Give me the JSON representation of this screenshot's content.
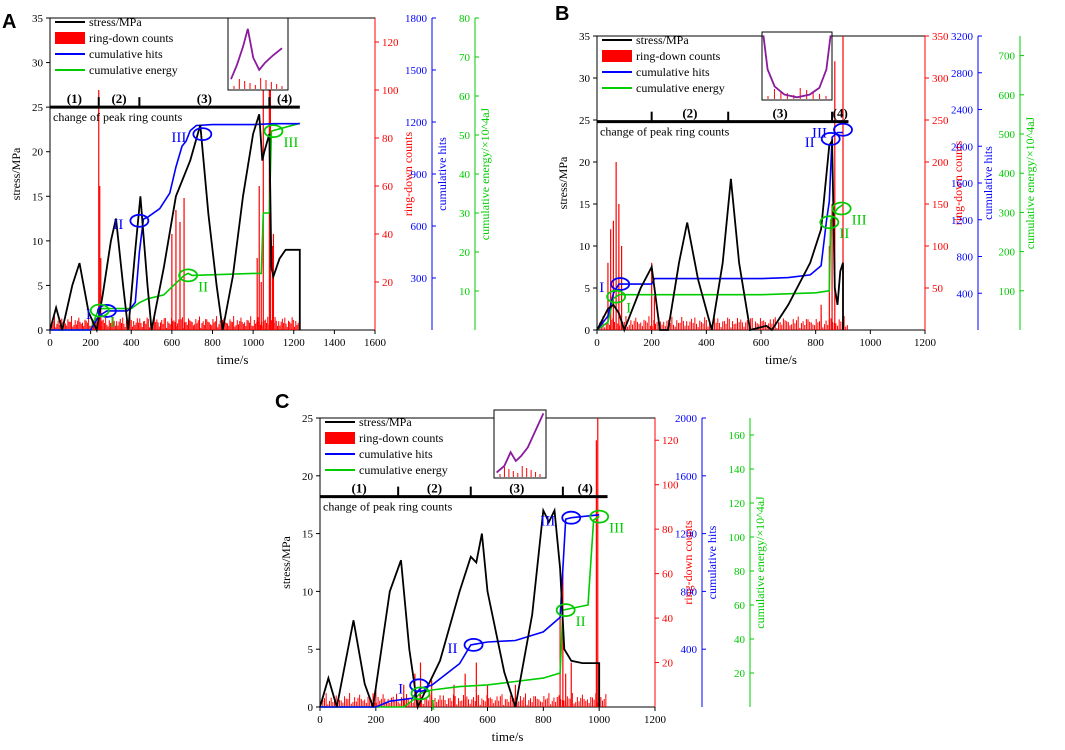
{
  "figure": {
    "panel_letters": [
      "A",
      "B",
      "C"
    ]
  },
  "common": {
    "xlabel": "time/s",
    "ylabel_stress": "stress/MPa",
    "ylabel_ring": "ring-down counts",
    "ylabel_hits": "cumulative hits",
    "ylabel_energy": "cumulative energy/×10^4aJ",
    "legend": [
      "stress/MPa",
      "ring-down counts",
      "cumulative hits",
      "cumulative energy"
    ],
    "phase_caption": "change of peak ring counts",
    "colors": {
      "stress": "#000000",
      "ring": "#ff0000",
      "hits": "#0000ff",
      "energy": "#00cc00",
      "inset": "#8b1a9e"
    }
  },
  "chart_data": [
    {
      "panel": "A",
      "type": "line",
      "xlim": [
        0,
        1600
      ],
      "xticks": [
        0,
        200,
        400,
        600,
        800,
        1000,
        1200,
        1400,
        1600
      ],
      "stress_axis": {
        "ylim": [
          0,
          35
        ],
        "ticks": [
          0,
          5,
          10,
          15,
          20,
          25,
          30,
          35
        ]
      },
      "ring_axis": {
        "ylim": [
          0,
          130
        ],
        "ticks": [
          20,
          40,
          60,
          80,
          100,
          120
        ]
      },
      "hits_axis": {
        "ylim": [
          0,
          1800
        ],
        "ticks": [
          300,
          600,
          900,
          1200,
          1500,
          1800
        ]
      },
      "energy_axis": {
        "ylim": [
          0,
          80
        ],
        "ticks": [
          10,
          20,
          30,
          40,
          50,
          60,
          70,
          80
        ]
      },
      "phases": {
        "labels": [
          "(1)",
          "(2)",
          "(3)",
          "(4)"
        ],
        "boundaries_s": [
          240,
          440,
          1080
        ],
        "end_s": 1230,
        "line_level_mpa": 25
      },
      "stress": [
        [
          0,
          0
        ],
        [
          30,
          2.5
        ],
        [
          60,
          0
        ],
        [
          110,
          5
        ],
        [
          145,
          7.5
        ],
        [
          190,
          2
        ],
        [
          230,
          0
        ],
        [
          260,
          4
        ],
        [
          300,
          10
        ],
        [
          325,
          12.5
        ],
        [
          360,
          5
        ],
        [
          385,
          0
        ],
        [
          420,
          9
        ],
        [
          445,
          15
        ],
        [
          480,
          5
        ],
        [
          500,
          0
        ],
        [
          560,
          7
        ],
        [
          620,
          15
        ],
        [
          690,
          19
        ],
        [
          740,
          23
        ],
        [
          780,
          13
        ],
        [
          820,
          5
        ],
        [
          850,
          0
        ],
        [
          900,
          6
        ],
        [
          950,
          15
        ],
        [
          1000,
          22
        ],
        [
          1030,
          24.2
        ],
        [
          1045,
          19
        ],
        [
          1055,
          20
        ],
        [
          1080,
          22
        ],
        [
          1090,
          7
        ],
        [
          1100,
          6
        ],
        [
          1130,
          8
        ],
        [
          1160,
          9
        ],
        [
          1230,
          9
        ],
        [
          1230,
          0
        ]
      ],
      "hits": [
        [
          0,
          0
        ],
        [
          200,
          0
        ],
        [
          240,
          80
        ],
        [
          260,
          95
        ],
        [
          280,
          110
        ],
        [
          380,
          110
        ],
        [
          400,
          130
        ],
        [
          420,
          160
        ],
        [
          440,
          450
        ],
        [
          460,
          640
        ],
        [
          480,
          650
        ],
        [
          540,
          700
        ],
        [
          590,
          790
        ],
        [
          620,
          940
        ],
        [
          650,
          1060
        ],
        [
          670,
          1090
        ],
        [
          690,
          1150
        ],
        [
          720,
          1180
        ],
        [
          800,
          1185
        ],
        [
          1000,
          1185
        ],
        [
          1100,
          1190
        ],
        [
          1230,
          1190
        ]
      ],
      "energy": [
        [
          0,
          0
        ],
        [
          200,
          0
        ],
        [
          240,
          5.5
        ],
        [
          260,
          5.5
        ],
        [
          400,
          5.5
        ],
        [
          440,
          7
        ],
        [
          480,
          8
        ],
        [
          560,
          9
        ],
        [
          600,
          11
        ],
        [
          640,
          13
        ],
        [
          660,
          14
        ],
        [
          680,
          14.5
        ],
        [
          700,
          14
        ],
        [
          1000,
          14.5
        ],
        [
          1040,
          14.5
        ],
        [
          1050,
          30
        ],
        [
          1080,
          30
        ],
        [
          1090,
          51
        ],
        [
          1230,
          53
        ]
      ],
      "ring_spikes": [
        [
          240,
          100
        ],
        [
          245,
          60
        ],
        [
          250,
          30
        ],
        [
          600,
          40
        ],
        [
          620,
          50
        ],
        [
          640,
          45
        ],
        [
          660,
          55
        ],
        [
          1020,
          30
        ],
        [
          1030,
          60
        ],
        [
          1040,
          20
        ],
        [
          1050,
          120
        ],
        [
          1080,
          125
        ],
        [
          1085,
          125
        ],
        [
          1095,
          35
        ],
        [
          1100,
          40
        ]
      ],
      "annotations": [
        {
          "label": "I",
          "series": "hits",
          "x": 280,
          "y": 110
        },
        {
          "label": "II",
          "series": "hits",
          "x": 440,
          "y": 630
        },
        {
          "label": "III",
          "series": "hits",
          "x": 750,
          "y": 1130
        },
        {
          "label": "I",
          "series": "energy",
          "x": 245,
          "y": 5
        },
        {
          "label": "II",
          "series": "energy",
          "x": 680,
          "y": 14
        },
        {
          "label": "III",
          "series": "energy",
          "x": 1100,
          "y": 51
        }
      ]
    },
    {
      "panel": "B",
      "type": "line",
      "xlim": [
        0,
        1200
      ],
      "xticks": [
        0,
        200,
        400,
        600,
        800,
        1000,
        1200
      ],
      "stress_axis": {
        "ylim": [
          0,
          35
        ],
        "ticks": [
          0,
          5,
          10,
          15,
          20,
          25,
          30,
          35
        ]
      },
      "ring_axis": {
        "ylim": [
          0,
          350
        ],
        "ticks": [
          50,
          100,
          150,
          200,
          250,
          300,
          350
        ]
      },
      "hits_axis": {
        "ylim": [
          0,
          3200
        ],
        "ticks": [
          400,
          800,
          1200,
          1600,
          2000,
          2400,
          2800,
          3200
        ]
      },
      "energy_axis": {
        "ylim": [
          0,
          750
        ],
        "ticks": [
          100,
          200,
          300,
          400,
          500,
          600,
          700
        ]
      },
      "phases": {
        "labels": [
          "(2)",
          "(3)",
          "(4)"
        ],
        "boundaries_s": [
          200,
          480,
          860
        ],
        "start_s": 0,
        "end_s": 920,
        "line_level_mpa": 24.8
      },
      "stress": [
        [
          0,
          0
        ],
        [
          40,
          2.5
        ],
        [
          60,
          3
        ],
        [
          80,
          2
        ],
        [
          100,
          0
        ],
        [
          160,
          5
        ],
        [
          200,
          7.5
        ],
        [
          230,
          0
        ],
        [
          260,
          0
        ],
        [
          300,
          8
        ],
        [
          330,
          12.8
        ],
        [
          370,
          6
        ],
        [
          420,
          0
        ],
        [
          460,
          8
        ],
        [
          490,
          18
        ],
        [
          520,
          8
        ],
        [
          560,
          0
        ],
        [
          620,
          0.5
        ],
        [
          640,
          0
        ],
        [
          700,
          3
        ],
        [
          780,
          8
        ],
        [
          820,
          12
        ],
        [
          850,
          22
        ],
        [
          860,
          22.5
        ],
        [
          870,
          5
        ],
        [
          880,
          3
        ],
        [
          890,
          7
        ],
        [
          900,
          8
        ],
        [
          900,
          0
        ]
      ],
      "hits": [
        [
          0,
          0
        ],
        [
          40,
          150
        ],
        [
          60,
          400
        ],
        [
          80,
          500
        ],
        [
          200,
          500
        ],
        [
          210,
          560
        ],
        [
          400,
          560
        ],
        [
          600,
          560
        ],
        [
          700,
          570
        ],
        [
          780,
          600
        ],
        [
          820,
          700
        ],
        [
          840,
          1200
        ],
        [
          850,
          1400
        ],
        [
          860,
          2100
        ],
        [
          880,
          2150
        ],
        [
          900,
          2150
        ]
      ],
      "energy": [
        [
          0,
          0
        ],
        [
          40,
          20
        ],
        [
          60,
          80
        ],
        [
          80,
          90
        ],
        [
          200,
          90
        ],
        [
          300,
          90
        ],
        [
          600,
          90
        ],
        [
          800,
          95
        ],
        [
          850,
          100
        ],
        [
          855,
          280
        ],
        [
          870,
          300
        ],
        [
          880,
          310
        ],
        [
          900,
          320
        ]
      ],
      "ring_spikes": [
        [
          40,
          80
        ],
        [
          50,
          120
        ],
        [
          60,
          130
        ],
        [
          70,
          200
        ],
        [
          80,
          150
        ],
        [
          90,
          100
        ],
        [
          200,
          80
        ],
        [
          210,
          40
        ],
        [
          820,
          30
        ],
        [
          850,
          100
        ],
        [
          860,
          150
        ],
        [
          870,
          320
        ],
        [
          900,
          350
        ]
      ],
      "annotations": [
        {
          "label": "I",
          "series": "hits",
          "x": 85,
          "y": 500
        },
        {
          "label": "II",
          "series": "hits",
          "x": 855,
          "y": 2080
        },
        {
          "label": "III",
          "series": "hits",
          "x": 900,
          "y": 2180
        },
        {
          "label": "I",
          "series": "energy",
          "x": 70,
          "y": 85
        },
        {
          "label": "II",
          "series": "energy",
          "x": 850,
          "y": 275
        },
        {
          "label": "III",
          "series": "energy",
          "x": 895,
          "y": 310
        }
      ]
    },
    {
      "panel": "C",
      "type": "line",
      "xlim": [
        0,
        1200
      ],
      "xticks": [
        0,
        200,
        400,
        600,
        800,
        1000,
        1200
      ],
      "stress_axis": {
        "ylim": [
          0,
          25
        ],
        "ticks": [
          0,
          5,
          10,
          15,
          20,
          25
        ]
      },
      "ring_axis": {
        "ylim": [
          0,
          130
        ],
        "ticks": [
          20,
          40,
          60,
          80,
          100,
          120
        ]
      },
      "hits_axis": {
        "ylim": [
          0,
          2000
        ],
        "ticks": [
          400,
          800,
          1200,
          1600,
          2000
        ]
      },
      "energy_axis": {
        "ylim": [
          0,
          170
        ],
        "ticks": [
          20,
          40,
          60,
          80,
          100,
          120,
          140,
          160
        ]
      },
      "phases": {
        "labels": [
          "(1)",
          "(2)",
          "(3)",
          "(4)"
        ],
        "boundaries_s": [
          280,
          540,
          870
        ],
        "end_s": 1030,
        "line_level_mpa": 18.2
      },
      "stress": [
        [
          0,
          0
        ],
        [
          30,
          2.5
        ],
        [
          60,
          0
        ],
        [
          120,
          7.5
        ],
        [
          160,
          2
        ],
        [
          190,
          0
        ],
        [
          250,
          10
        ],
        [
          290,
          12.7
        ],
        [
          320,
          5
        ],
        [
          350,
          0
        ],
        [
          430,
          4
        ],
        [
          500,
          10
        ],
        [
          540,
          13
        ],
        [
          560,
          12.5
        ],
        [
          580,
          15
        ],
        [
          600,
          10
        ],
        [
          660,
          3
        ],
        [
          700,
          0
        ],
        [
          760,
          8
        ],
        [
          800,
          17
        ],
        [
          820,
          16
        ],
        [
          840,
          17
        ],
        [
          860,
          12
        ],
        [
          875,
          5
        ],
        [
          900,
          4
        ],
        [
          940,
          3.8
        ],
        [
          1000,
          3.8
        ],
        [
          1000,
          0
        ]
      ],
      "hits": [
        [
          0,
          0
        ],
        [
          200,
          0
        ],
        [
          250,
          40
        ],
        [
          330,
          60
        ],
        [
          360,
          130
        ],
        [
          400,
          150
        ],
        [
          500,
          300
        ],
        [
          540,
          430
        ],
        [
          600,
          450
        ],
        [
          700,
          460
        ],
        [
          800,
          520
        ],
        [
          860,
          620
        ],
        [
          880,
          1300
        ],
        [
          900,
          1310
        ],
        [
          1000,
          1330
        ]
      ],
      "energy": [
        [
          0,
          0
        ],
        [
          300,
          0
        ],
        [
          340,
          5
        ],
        [
          360,
          8
        ],
        [
          400,
          10
        ],
        [
          500,
          12
        ],
        [
          600,
          13
        ],
        [
          700,
          15
        ],
        [
          800,
          17
        ],
        [
          860,
          20
        ],
        [
          870,
          57
        ],
        [
          900,
          58
        ],
        [
          960,
          60
        ],
        [
          980,
          110
        ],
        [
          1000,
          112
        ]
      ],
      "ring_spikes": [
        [
          200,
          8
        ],
        [
          300,
          10
        ],
        [
          340,
          15
        ],
        [
          360,
          20
        ],
        [
          400,
          12
        ],
        [
          480,
          10
        ],
        [
          520,
          15
        ],
        [
          560,
          20
        ],
        [
          600,
          10
        ],
        [
          700,
          10
        ],
        [
          860,
          40
        ],
        [
          870,
          60
        ],
        [
          880,
          15
        ],
        [
          900,
          20
        ],
        [
          990,
          120
        ],
        [
          995,
          130
        ]
      ],
      "annotations": [
        {
          "label": "I",
          "series": "hits",
          "x": 355,
          "y": 150
        },
        {
          "label": "II",
          "series": "hits",
          "x": 550,
          "y": 430
        },
        {
          "label": "III",
          "series": "hits",
          "x": 900,
          "y": 1310
        },
        {
          "label": "I",
          "series": "energy",
          "x": 360,
          "y": 8
        },
        {
          "label": "II",
          "series": "energy",
          "x": 880,
          "y": 57
        },
        {
          "label": "III",
          "series": "energy",
          "x": 1000,
          "y": 112
        }
      ]
    }
  ]
}
